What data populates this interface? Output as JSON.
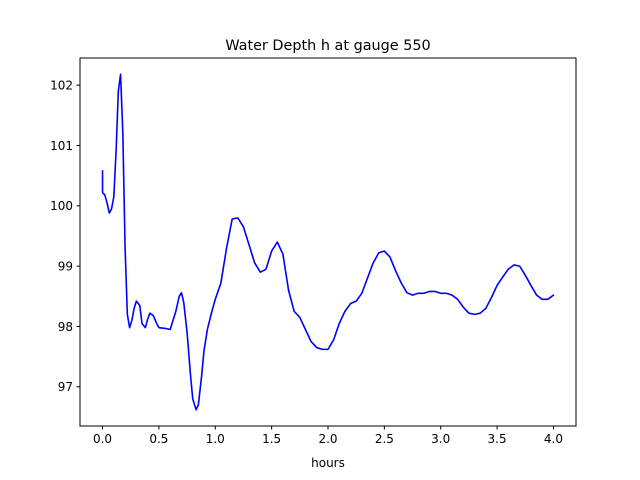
{
  "chart_data": {
    "type": "line",
    "title": "Water Depth h at gauge 550",
    "xlabel": "hours",
    "ylabel": "",
    "xlim": [
      -0.2,
      4.2
    ],
    "ylim": [
      96.35,
      102.45
    ],
    "xticks": [
      0.0,
      0.5,
      1.0,
      1.5,
      2.0,
      2.5,
      3.0,
      3.5,
      4.0
    ],
    "xtick_labels": [
      "0.0",
      "0.5",
      "1.0",
      "1.5",
      "2.0",
      "2.5",
      "3.0",
      "3.5",
      "4.0"
    ],
    "yticks": [
      97,
      98,
      99,
      100,
      101,
      102
    ],
    "ytick_labels": [
      "97",
      "98",
      "99",
      "100",
      "101",
      "102"
    ],
    "grid": false,
    "series": [
      {
        "color": "#0000ff",
        "x": [
          0.0,
          0.0,
          0.02,
          0.04,
          0.06,
          0.08,
          0.1,
          0.12,
          0.14,
          0.16,
          0.18,
          0.2,
          0.22,
          0.24,
          0.26,
          0.28,
          0.3,
          0.33,
          0.35,
          0.38,
          0.4,
          0.42,
          0.45,
          0.48,
          0.5,
          0.55,
          0.6,
          0.65,
          0.68,
          0.7,
          0.72,
          0.75,
          0.78,
          0.8,
          0.83,
          0.85,
          0.88,
          0.9,
          0.93,
          0.97,
          1.0,
          1.05,
          1.1,
          1.15,
          1.2,
          1.25,
          1.3,
          1.35,
          1.4,
          1.45,
          1.5,
          1.55,
          1.6,
          1.65,
          1.7,
          1.75,
          1.8,
          1.85,
          1.9,
          1.95,
          2.0,
          2.05,
          2.1,
          2.15,
          2.2,
          2.25,
          2.3,
          2.35,
          2.4,
          2.45,
          2.5,
          2.55,
          2.6,
          2.65,
          2.7,
          2.75,
          2.8,
          2.85,
          2.9,
          2.95,
          3.0,
          3.05,
          3.1,
          3.15,
          3.2,
          3.25,
          3.3,
          3.35,
          3.4,
          3.45,
          3.5,
          3.55,
          3.6,
          3.65,
          3.7,
          3.75,
          3.8,
          3.85,
          3.9,
          3.95,
          4.0
        ],
        "y": [
          100.58,
          100.22,
          100.18,
          100.05,
          99.88,
          99.95,
          100.15,
          100.9,
          101.9,
          102.18,
          101.2,
          99.3,
          98.2,
          97.98,
          98.1,
          98.3,
          98.42,
          98.35,
          98.05,
          97.98,
          98.12,
          98.22,
          98.18,
          98.05,
          97.98,
          97.97,
          97.95,
          98.25,
          98.5,
          98.56,
          98.4,
          97.9,
          97.2,
          96.8,
          96.62,
          96.7,
          97.2,
          97.6,
          97.95,
          98.25,
          98.45,
          98.72,
          99.3,
          99.78,
          99.8,
          99.65,
          99.35,
          99.05,
          98.9,
          98.95,
          99.25,
          99.4,
          99.2,
          98.6,
          98.25,
          98.15,
          97.95,
          97.75,
          97.65,
          97.62,
          97.62,
          97.78,
          98.05,
          98.25,
          98.38,
          98.42,
          98.55,
          98.8,
          99.05,
          99.22,
          99.25,
          99.15,
          98.92,
          98.72,
          98.56,
          98.52,
          98.55,
          98.55,
          98.58,
          98.58,
          98.55,
          98.55,
          98.52,
          98.45,
          98.32,
          98.22,
          98.2,
          98.22,
          98.3,
          98.48,
          98.68,
          98.82,
          98.95,
          99.02,
          99.0,
          98.85,
          98.68,
          98.52,
          98.45,
          98.45,
          98.52
        ]
      }
    ]
  }
}
